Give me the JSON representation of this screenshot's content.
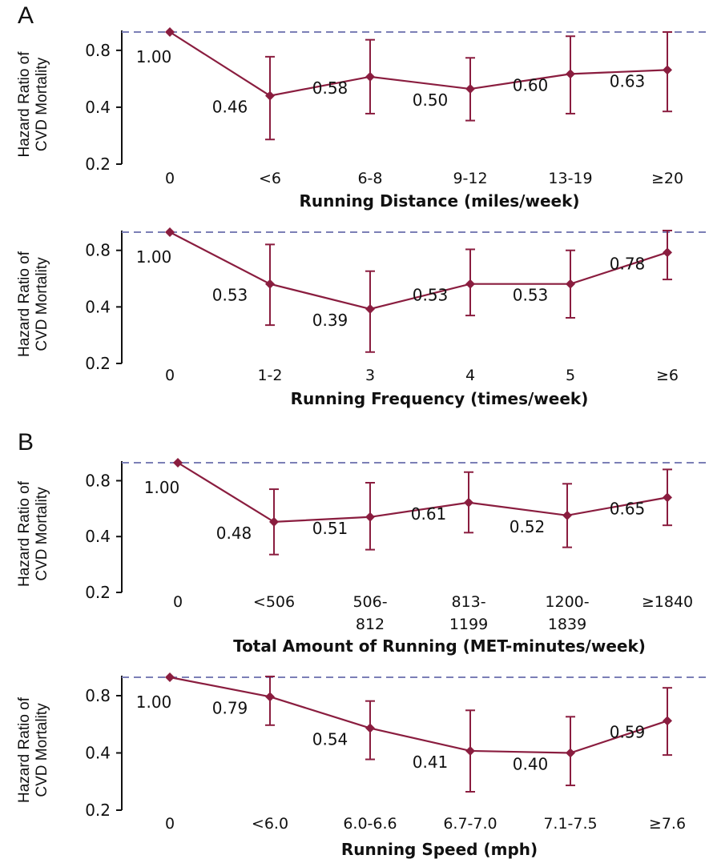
{
  "chart_data": [
    {
      "type": "line",
      "panel_label": "A",
      "title": "",
      "xlabel": "Running Distance (miles/week)",
      "ylabel": "Hazard Ratio of CVD Mortality",
      "ylim": [
        0.2,
        1.0
      ],
      "y_scale": "log",
      "yticks": [
        "0.2",
        "0.4",
        "0.8"
      ],
      "categories": [
        "0",
        "<6",
        "6-8",
        "9-12",
        "13-19",
        "≥20"
      ],
      "reference_line": 1.0,
      "series": [
        {
          "values": [
            1.0,
            0.46,
            0.58,
            0.5,
            0.6,
            0.63
          ],
          "labels": [
            "1.00",
            "0.46",
            "0.58",
            "0.50",
            "0.60",
            "0.63"
          ],
          "ci_lower": [
            null,
            0.27,
            0.37,
            0.34,
            0.37,
            0.38
          ],
          "ci_upper": [
            null,
            0.74,
            0.91,
            0.73,
            0.95,
            1.0
          ]
        }
      ],
      "color": "#8a1d3f",
      "reference_color": "#7b7fb6"
    },
    {
      "type": "line",
      "title": "",
      "xlabel": "Running Frequency (times/week)",
      "ylabel": "Hazard Ratio of CVD Mortality",
      "ylim": [
        0.2,
        1.0
      ],
      "y_scale": "log",
      "yticks": [
        "0.2",
        "0.4",
        "0.8"
      ],
      "categories": [
        "0",
        "1-2",
        "3",
        "4",
        "5",
        "≥6"
      ],
      "reference_line": 1.0,
      "series": [
        {
          "values": [
            1.0,
            0.53,
            0.39,
            0.53,
            0.53,
            0.78
          ],
          "labels": [
            "1.00",
            "0.53",
            "0.39",
            "0.53",
            "0.53",
            "0.78"
          ],
          "ci_lower": [
            null,
            0.32,
            0.23,
            0.36,
            0.35,
            0.56
          ],
          "ci_upper": [
            null,
            0.86,
            0.62,
            0.81,
            0.8,
            1.02
          ]
        }
      ],
      "color": "#8a1d3f",
      "reference_color": "#7b7fb6"
    },
    {
      "type": "line",
      "panel_label": "B",
      "title": "",
      "xlabel": "Total Amount of Running (MET-minutes/week)",
      "ylabel": "Hazard Ratio of CVD Mortality",
      "ylim": [
        0.2,
        1.0
      ],
      "y_scale": "log",
      "yticks": [
        "0.2",
        "0.4",
        "0.8"
      ],
      "categories": [
        "0",
        "<506",
        "506-\n812",
        "813-\n1199",
        "1200-\n1839",
        "≥1840"
      ],
      "reference_line": 1.0,
      "series": [
        {
          "values": [
            1.0,
            0.48,
            0.51,
            0.61,
            0.52,
            0.65
          ],
          "labels": [
            "1.00",
            "0.48",
            "0.51",
            "0.61",
            "0.52",
            "0.65"
          ],
          "ci_lower": [
            null,
            0.32,
            0.34,
            0.42,
            0.35,
            0.46
          ],
          "ci_upper": [
            null,
            0.72,
            0.78,
            0.89,
            0.77,
            0.92
          ]
        }
      ],
      "color": "#8a1d3f",
      "reference_color": "#7b7fb6"
    },
    {
      "type": "line",
      "title": "",
      "xlabel": "Running Speed (mph)",
      "ylabel": "Hazard Ratio of CVD Mortality",
      "ylim": [
        0.2,
        1.0
      ],
      "y_scale": "log",
      "yticks": [
        "0.2",
        "0.4",
        "0.8"
      ],
      "categories": [
        "0",
        "<6.0",
        "6.0-6.6",
        "6.7-7.0",
        "7.1-7.5",
        "≥7.6"
      ],
      "reference_line": 1.0,
      "series": [
        {
          "values": [
            1.0,
            0.79,
            0.54,
            0.41,
            0.4,
            0.59
          ],
          "labels": [
            "1.00",
            "0.79",
            "0.54",
            "0.41",
            "0.40",
            "0.59"
          ],
          "ci_lower": [
            null,
            0.56,
            0.37,
            0.25,
            0.27,
            0.39
          ],
          "ci_upper": [
            null,
            1.01,
            0.75,
            0.67,
            0.62,
            0.88
          ]
        }
      ],
      "color": "#8a1d3f",
      "reference_color": "#7b7fb6"
    }
  ]
}
